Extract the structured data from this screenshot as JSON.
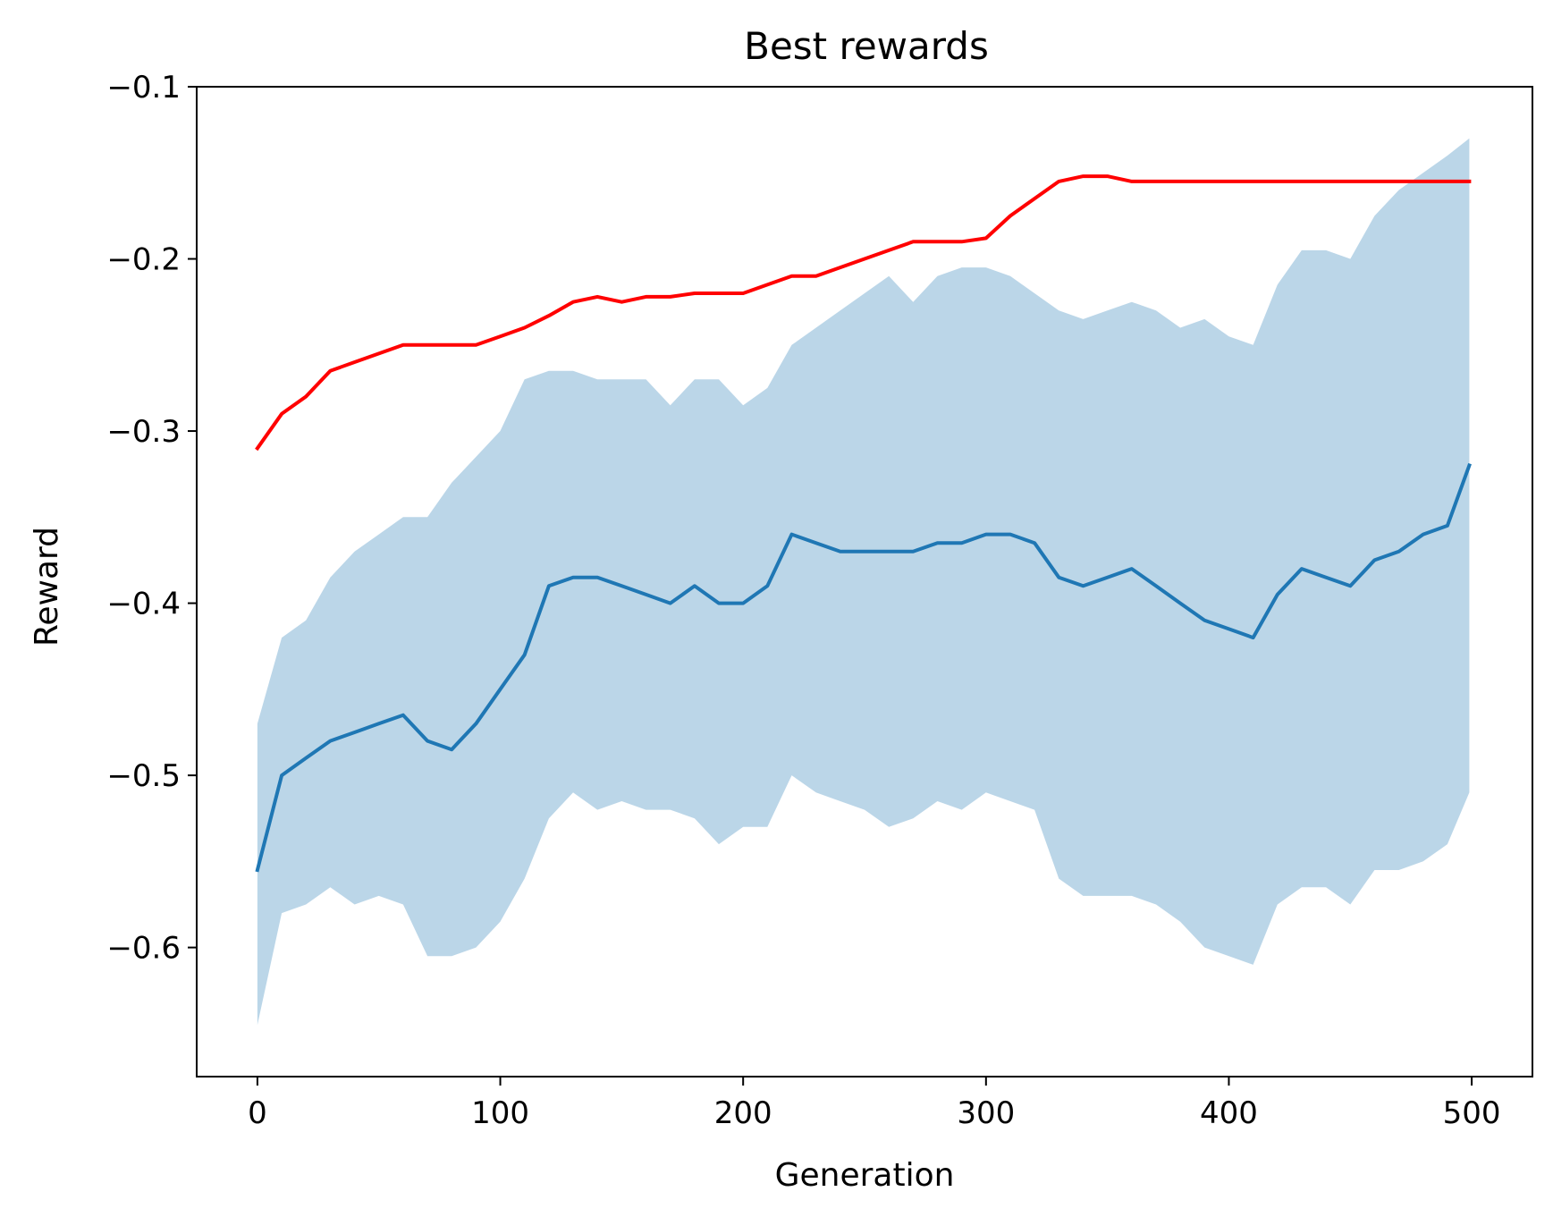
{
  "chart_data": {
    "type": "line",
    "title": "Best rewards",
    "xlabel": "Generation",
    "ylabel": "Reward",
    "xlim": [
      -25,
      525
    ],
    "ylim": [
      -0.675,
      -0.1
    ],
    "xticks": [
      0,
      100,
      200,
      300,
      400,
      500
    ],
    "yticks": [
      -0.1,
      -0.2,
      -0.3,
      -0.4,
      -0.5,
      -0.6
    ],
    "xtick_labels": [
      "0",
      "100",
      "200",
      "300",
      "400",
      "500"
    ],
    "ytick_labels": [
      "−0.1",
      "−0.2",
      "−0.3",
      "−0.4",
      "−0.5",
      "−0.6"
    ],
    "grid": false,
    "x": [
      0,
      10,
      20,
      30,
      40,
      50,
      60,
      70,
      80,
      90,
      100,
      110,
      120,
      130,
      140,
      150,
      160,
      170,
      180,
      190,
      200,
      210,
      220,
      230,
      240,
      250,
      260,
      270,
      280,
      290,
      300,
      310,
      320,
      330,
      340,
      350,
      360,
      370,
      380,
      390,
      400,
      410,
      420,
      430,
      440,
      450,
      460,
      470,
      480,
      490,
      499
    ],
    "series": [
      {
        "kind": "line",
        "color": "#ff0000",
        "values": [
          -0.31,
          -0.29,
          -0.28,
          -0.265,
          -0.26,
          -0.255,
          -0.25,
          -0.25,
          -0.25,
          -0.25,
          -0.245,
          -0.24,
          -0.233,
          -0.225,
          -0.222,
          -0.225,
          -0.222,
          -0.222,
          -0.22,
          -0.22,
          -0.22,
          -0.215,
          -0.21,
          -0.21,
          -0.205,
          -0.2,
          -0.195,
          -0.19,
          -0.19,
          -0.19,
          -0.188,
          -0.175,
          -0.165,
          -0.155,
          -0.152,
          -0.152,
          -0.155,
          -0.155,
          -0.155,
          -0.155,
          -0.155,
          -0.155,
          -0.155,
          -0.155,
          -0.155,
          -0.155,
          -0.155,
          -0.155,
          -0.155,
          -0.155,
          -0.155
        ]
      },
      {
        "kind": "line",
        "color": "#1f77b4",
        "values": [
          -0.555,
          -0.5,
          -0.49,
          -0.48,
          -0.475,
          -0.47,
          -0.465,
          -0.48,
          -0.485,
          -0.47,
          -0.45,
          -0.43,
          -0.39,
          -0.385,
          -0.385,
          -0.39,
          -0.395,
          -0.4,
          -0.39,
          -0.4,
          -0.4,
          -0.39,
          -0.36,
          -0.365,
          -0.37,
          -0.37,
          -0.37,
          -0.37,
          -0.365,
          -0.365,
          -0.36,
          -0.36,
          -0.365,
          -0.385,
          -0.39,
          -0.385,
          -0.38,
          -0.39,
          -0.4,
          -0.41,
          -0.415,
          -0.42,
          -0.395,
          -0.38,
          -0.385,
          -0.39,
          -0.375,
          -0.37,
          -0.36,
          -0.355,
          -0.32
        ]
      },
      {
        "kind": "band",
        "color": "#1f77b4",
        "alpha": 0.3,
        "upper": [
          -0.47,
          -0.42,
          -0.41,
          -0.385,
          -0.37,
          -0.36,
          -0.35,
          -0.35,
          -0.33,
          -0.315,
          -0.3,
          -0.27,
          -0.265,
          -0.265,
          -0.27,
          -0.27,
          -0.27,
          -0.285,
          -0.27,
          -0.27,
          -0.285,
          -0.275,
          -0.25,
          -0.24,
          -0.23,
          -0.22,
          -0.21,
          -0.225,
          -0.21,
          -0.205,
          -0.205,
          -0.21,
          -0.22,
          -0.23,
          -0.235,
          -0.23,
          -0.225,
          -0.23,
          -0.24,
          -0.235,
          -0.245,
          -0.25,
          -0.215,
          -0.195,
          -0.195,
          -0.2,
          -0.175,
          -0.16,
          -0.15,
          -0.14,
          -0.13
        ],
        "lower": [
          -0.645,
          -0.58,
          -0.575,
          -0.565,
          -0.575,
          -0.57,
          -0.575,
          -0.605,
          -0.605,
          -0.6,
          -0.585,
          -0.56,
          -0.525,
          -0.51,
          -0.52,
          -0.515,
          -0.52,
          -0.52,
          -0.525,
          -0.54,
          -0.53,
          -0.53,
          -0.5,
          -0.51,
          -0.515,
          -0.52,
          -0.53,
          -0.525,
          -0.515,
          -0.52,
          -0.51,
          -0.515,
          -0.52,
          -0.56,
          -0.57,
          -0.57,
          -0.57,
          -0.575,
          -0.585,
          -0.6,
          -0.605,
          -0.61,
          -0.575,
          -0.565,
          -0.565,
          -0.575,
          -0.555,
          -0.555,
          -0.55,
          -0.54,
          -0.51
        ]
      }
    ]
  }
}
